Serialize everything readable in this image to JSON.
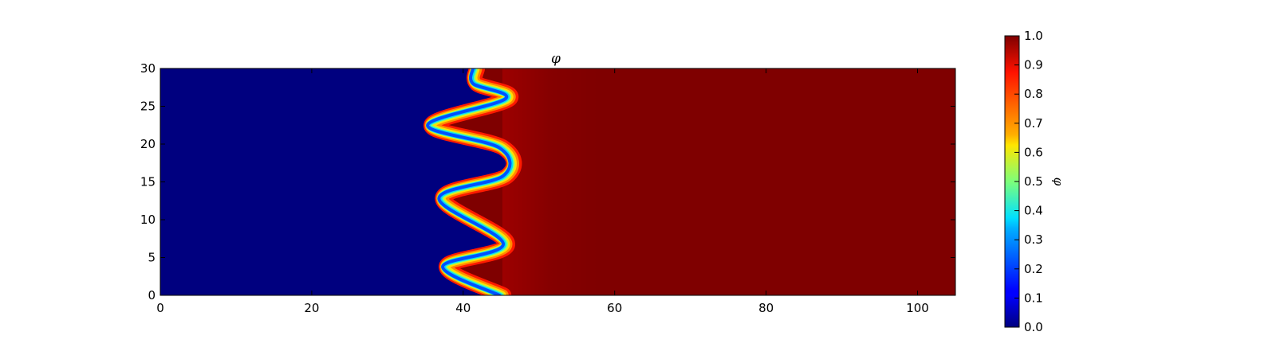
{
  "chart_data": {
    "type": "heatmap",
    "title": "φ",
    "xlabel": "",
    "ylabel": "",
    "xlim": [
      0,
      105
    ],
    "ylim": [
      0,
      30
    ],
    "x_ticks": [
      "0",
      "20",
      "40",
      "60",
      "80",
      "100"
    ],
    "y_ticks": [
      "0",
      "5",
      "10",
      "15",
      "20",
      "25",
      "30"
    ],
    "colormap": "jet",
    "low_value": 0.0,
    "high_value": 1.0,
    "low_color": "#00007f",
    "high_color": "#7f0000",
    "interface_mean_x": 42.0,
    "interface_amplitude_x": 6.5,
    "interface_period_y": 9.5,
    "interface_points": [
      {
        "x": 45.0,
        "y": 0.0
      },
      {
        "x": 37.5,
        "y": 3.8
      },
      {
        "x": 45.5,
        "y": 6.8
      },
      {
        "x": 37.0,
        "y": 12.8
      },
      {
        "x": 45.5,
        "y": 15.8
      },
      {
        "x": 45.0,
        "y": 19.5
      },
      {
        "x": 35.5,
        "y": 22.5
      },
      {
        "x": 45.8,
        "y": 26.0
      },
      {
        "x": 41.5,
        "y": 28.0
      },
      {
        "x": 41.5,
        "y": 30.0
      }
    ],
    "colorbar": {
      "label": "φ",
      "range": [
        0.0,
        1.0
      ],
      "ticks": [
        "0.0",
        "0.1",
        "0.2",
        "0.3",
        "0.4",
        "0.5",
        "0.6",
        "0.7",
        "0.8",
        "0.9",
        "1.0"
      ]
    }
  }
}
